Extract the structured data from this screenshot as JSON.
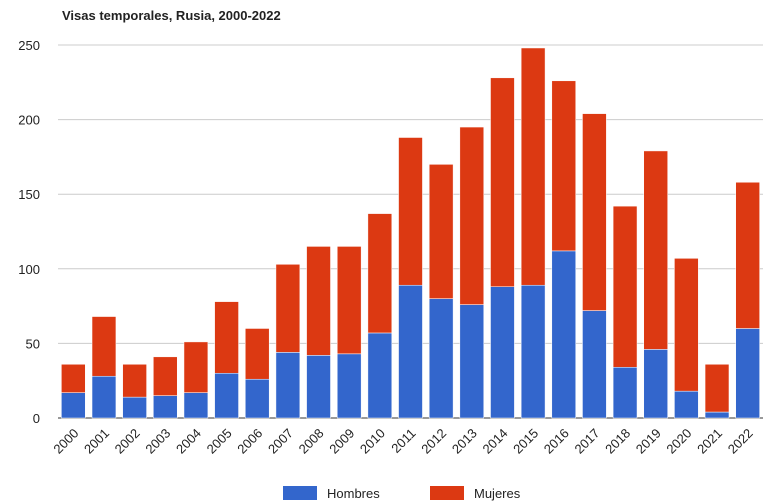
{
  "chart_data": {
    "type": "bar",
    "stacked": true,
    "title": "Visas temporales, Rusia, 2000-2022",
    "xlabel": "",
    "ylabel": "",
    "ylim": [
      0,
      250
    ],
    "yticks": [
      0,
      50,
      100,
      150,
      200,
      250
    ],
    "grid": true,
    "legend_position": "bottom",
    "categories": [
      "2000",
      "2001",
      "2002",
      "2003",
      "2004",
      "2005",
      "2006",
      "2007",
      "2008",
      "2009",
      "2010",
      "2011",
      "2012",
      "2013",
      "2014",
      "2015",
      "2016",
      "2017",
      "2018",
      "2019",
      "2020",
      "2021",
      "2022"
    ],
    "series": [
      {
        "name": "Hombres",
        "color": "#3366cc",
        "values": [
          17,
          28,
          14,
          15,
          17,
          30,
          26,
          44,
          42,
          43,
          57,
          89,
          80,
          76,
          88,
          89,
          112,
          72,
          34,
          46,
          18,
          4,
          60
        ]
      },
      {
        "name": "Mujeres",
        "color": "#dc3912",
        "values": [
          19,
          40,
          22,
          26,
          34,
          48,
          34,
          59,
          73,
          72,
          80,
          99,
          90,
          119,
          140,
          159,
          114,
          132,
          108,
          133,
          89,
          32,
          98
        ]
      }
    ]
  }
}
